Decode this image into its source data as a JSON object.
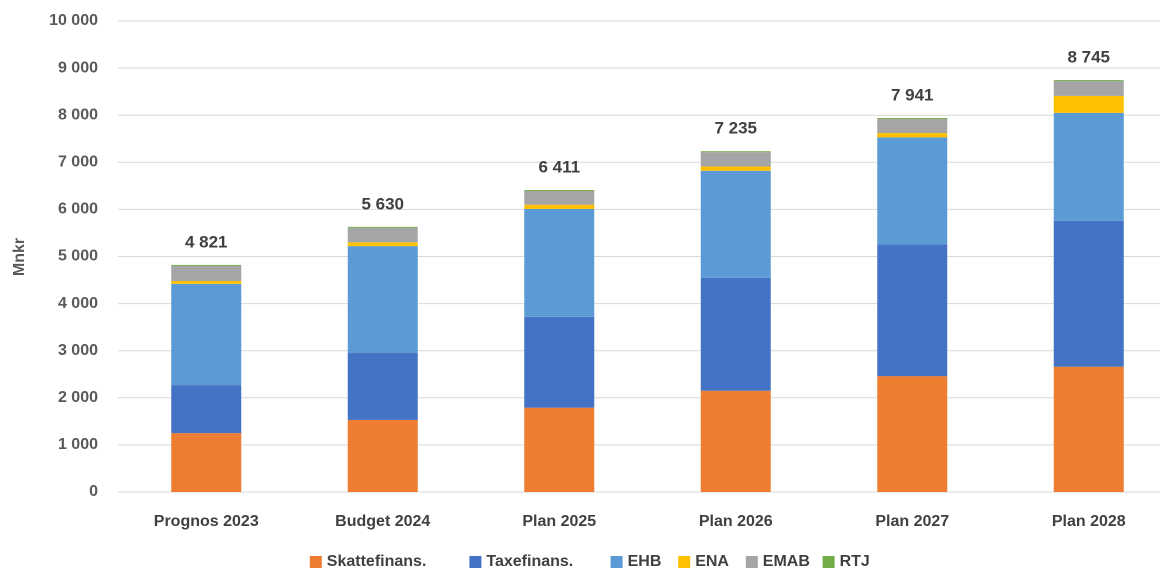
{
  "chart_data": {
    "type": "stacked_bar",
    "y_label": "Mnkr",
    "categories": [
      "Prognos 2023",
      "Budget 2024",
      "Plan 2025",
      "Plan 2026",
      "Plan 2027",
      "Plan 2028"
    ],
    "series": [
      {
        "name": "Skattefinans.",
        "color": "#ed7d31",
        "values": [
          1250,
          1530,
          1790,
          2150,
          2460,
          2660
        ]
      },
      {
        "name": "Taxefinans.",
        "color": "#4472c4",
        "values": [
          1020,
          1420,
          1930,
          2400,
          2800,
          3100
        ]
      },
      {
        "name": "EHB",
        "color": "#5b9bd5",
        "values": [
          2150,
          2270,
          2290,
          2270,
          2270,
          2290
        ]
      },
      {
        "name": "ENA",
        "color": "#ffc000",
        "values": [
          60,
          80,
          90,
          90,
          90,
          360
        ]
      },
      {
        "name": "EMAB",
        "color": "#a5a5a5",
        "values": [
          320,
          310,
          291,
          305,
          301,
          315
        ]
      },
      {
        "name": "RTJ",
        "color": "#70ad47",
        "values": [
          21,
          20,
          20,
          20,
          20,
          20
        ]
      }
    ],
    "totals": [
      4821,
      5630,
      6411,
      7235,
      7941,
      8745
    ],
    "total_labels": [
      "4 821",
      "5 630",
      "6 411",
      "7 235",
      "7 941",
      "8 745"
    ],
    "ylim": [
      0,
      10000
    ],
    "yticks": [
      0,
      {
        "value": 1000,
        "label": "1 000"
      },
      {
        "value": 2000,
        "label": "2 000"
      },
      {
        "value": 3000,
        "label": "3 000"
      },
      {
        "value": 4000,
        "label": "4 000"
      },
      {
        "value": 5000,
        "label": "5 000"
      },
      {
        "value": 6000,
        "label": "6 000"
      },
      {
        "value": 7000,
        "label": "7 000"
      },
      {
        "value": 8000,
        "label": "8 000"
      },
      {
        "value": 9000,
        "label": "9 000"
      },
      {
        "value": 10000,
        "label": "10 000"
      }
    ],
    "grid": true,
    "legend": "bottom"
  }
}
